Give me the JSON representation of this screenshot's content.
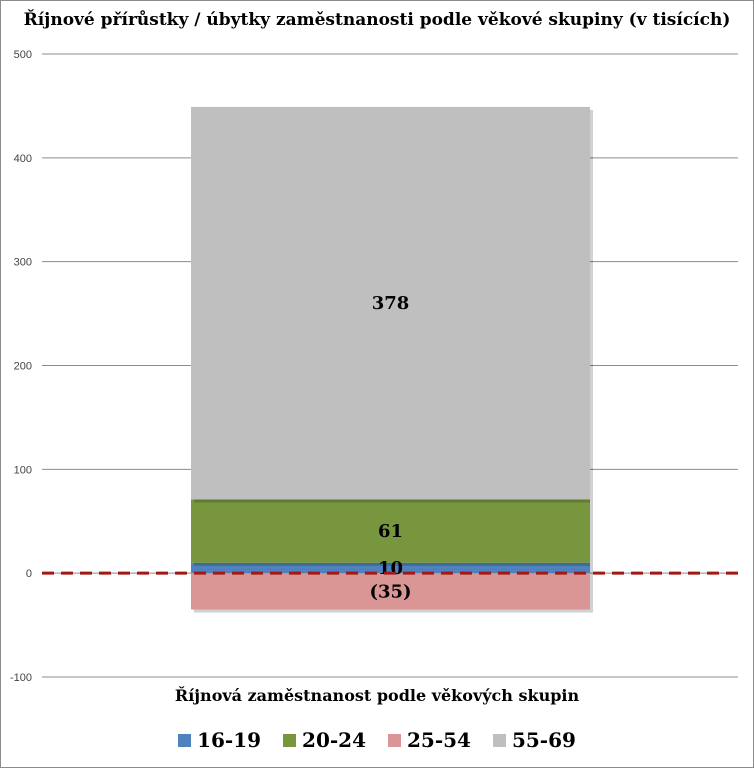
{
  "chart_data": {
    "type": "bar",
    "stacked": true,
    "title": "Říjnové přírůstky / úbytky zaměstnanosti podle věkové skupiny (v tisících)",
    "xlabel": "Říjnová zaměstnanost podle věkových skupin",
    "ylabel": "",
    "ylim": [
      -100,
      500
    ],
    "yticks": [
      -100,
      0,
      100,
      200,
      300,
      400,
      500
    ],
    "grid": true,
    "legend_position": "bottom",
    "reference_line": {
      "value": 0,
      "style": "dashed",
      "color": "#a01818"
    },
    "categories": [
      ""
    ],
    "series": [
      {
        "name": "16-19",
        "values": [
          10
        ],
        "label": "10",
        "color": "#4f81bd"
      },
      {
        "name": "20-24",
        "values": [
          61
        ],
        "label": "61",
        "color": "#77963d"
      },
      {
        "name": "25-54",
        "values": [
          -35
        ],
        "label": "(35)",
        "color": "#d99694"
      },
      {
        "name": "55-69",
        "values": [
          378
        ],
        "label": "378",
        "color": "#bfbfbf"
      }
    ]
  }
}
